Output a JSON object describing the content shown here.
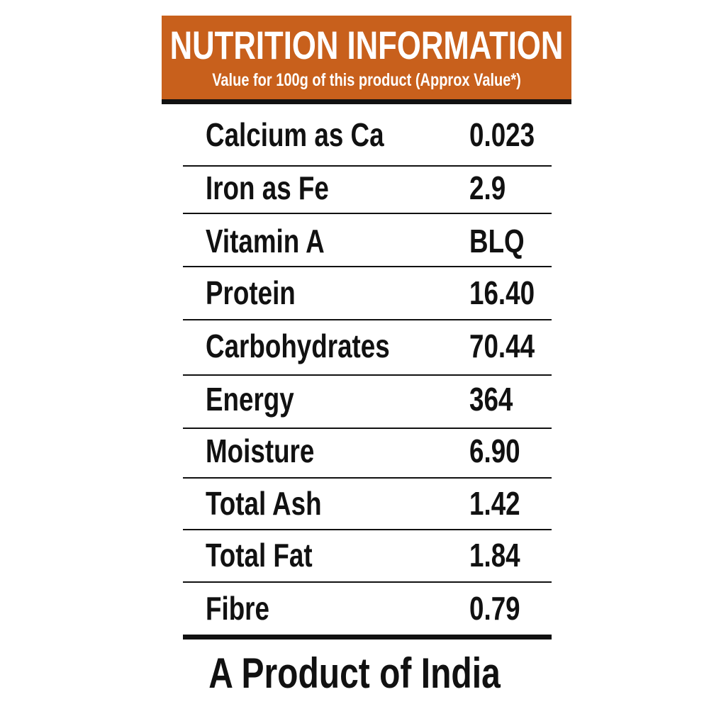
{
  "header": {
    "title": "NUTRITION INFORMATION",
    "subtitle": "Value for 100g of this product (Approx Value*)"
  },
  "table": {
    "rows": [
      [
        "Calcium as Ca",
        "0.023"
      ],
      [
        "Iron as Fe",
        "2.9"
      ],
      [
        "Vitamin A",
        "BLQ"
      ],
      [
        "Protein",
        "16.40"
      ],
      [
        "Carbohydrates",
        "70.44"
      ],
      [
        "Energy",
        "364"
      ],
      [
        "Moisture",
        "6.90"
      ],
      [
        "Total Ash",
        "1.42"
      ],
      [
        "Total Fat",
        "1.84"
      ],
      [
        "Fibre",
        "0.79"
      ]
    ]
  },
  "footer": {
    "text": "A Product of India"
  }
}
